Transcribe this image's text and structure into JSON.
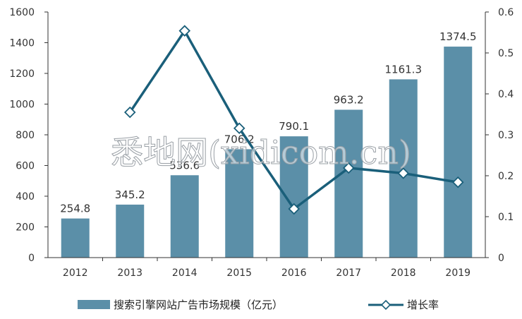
{
  "chart_data": {
    "type": "bar",
    "categories": [
      "2012",
      "2013",
      "2014",
      "2015",
      "2016",
      "2017",
      "2018",
      "2019"
    ],
    "series": [
      {
        "name": "搜索引擎网站广告市场规模（亿元）",
        "type": "bar",
        "axis": "left",
        "values": [
          254.8,
          345.2,
          536.6,
          706.2,
          790.1,
          963.2,
          1161.3,
          1374.5
        ],
        "labels": [
          "254.8",
          "345.2",
          "536.6",
          "706.2",
          "790.1",
          "963.2",
          "1161.3",
          "1374.5"
        ],
        "color": "#5b8fa8"
      },
      {
        "name": "增长率",
        "type": "line",
        "axis": "right",
        "values": [
          null,
          0.355,
          0.554,
          0.316,
          0.119,
          0.219,
          0.206,
          0.184
        ],
        "color": "#1a5f7a"
      }
    ],
    "ylim_left": [
      0,
      1600
    ],
    "yticks_left": [
      "0",
      "200",
      "400",
      "600",
      "800",
      "1000",
      "1200",
      "1400",
      "1600"
    ],
    "ylim_right": [
      0,
      0.6
    ],
    "yticks_right": [
      "0",
      "0.1",
      "0.2",
      "0.3",
      "0.4",
      "0.5",
      "0.6"
    ],
    "legend": "bottom",
    "grid": false,
    "watermark": "悉地网(xidicom.cn)"
  }
}
